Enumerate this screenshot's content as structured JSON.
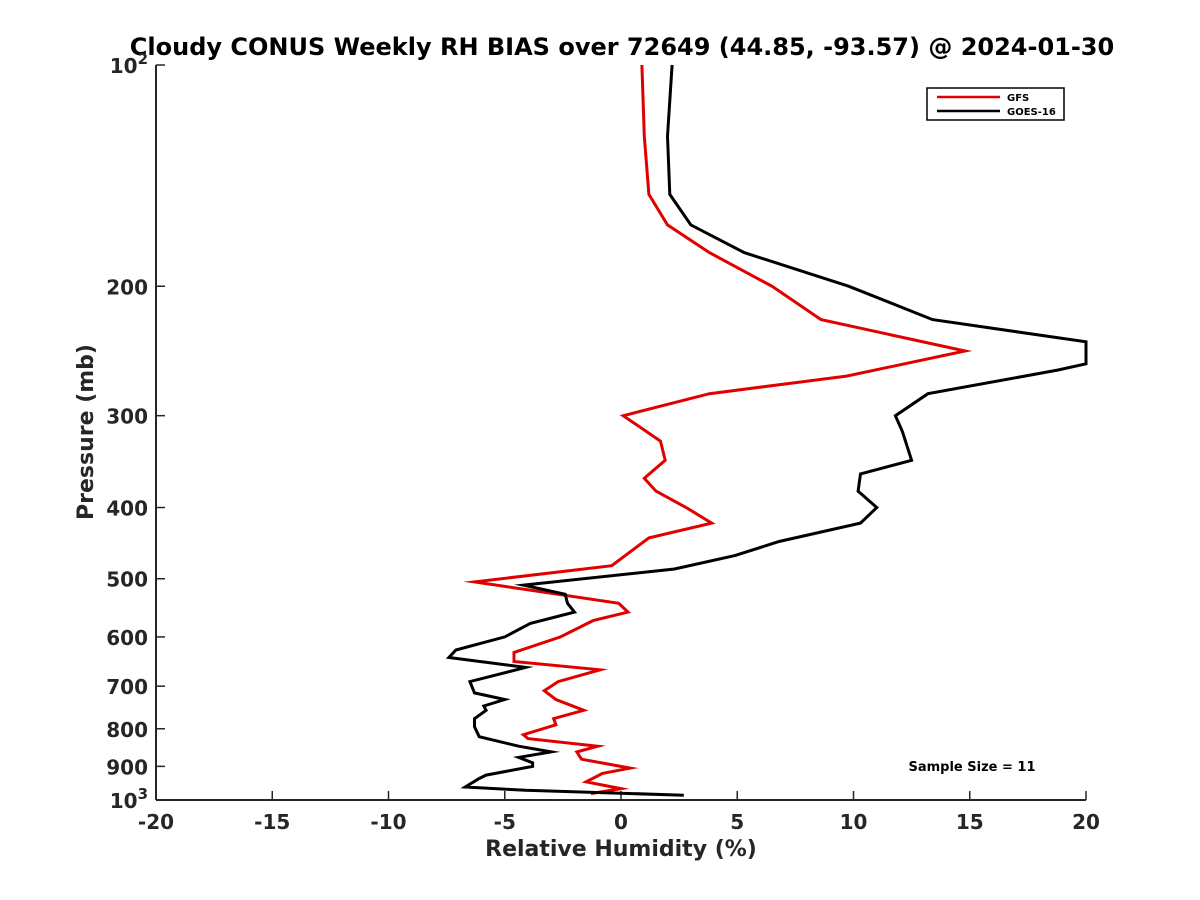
{
  "chart_data": {
    "type": "line",
    "title": "Cloudy CONUS Weekly RH BIAS over 72649 (44.85, -93.57) @ 2024-01-30",
    "xlabel": "Relative Humidity (%)",
    "ylabel": "Pressure (mb)",
    "xlim": [
      -20,
      20
    ],
    "ylim": [
      1000,
      100
    ],
    "y_scale": "log",
    "x_ticks": [
      -20,
      -15,
      -10,
      -5,
      0,
      5,
      10,
      15,
      20
    ],
    "x_tick_labels": [
      "-20",
      "-15",
      "-10",
      "-5",
      "0",
      "5",
      "10",
      "15",
      "20"
    ],
    "y_ticks": [
      100,
      200,
      300,
      400,
      500,
      600,
      700,
      800,
      900,
      1000
    ],
    "y_tick_labels": [
      {
        "base": "10",
        "sup": "2"
      },
      {
        "base": "200",
        "sup": ""
      },
      {
        "base": "300",
        "sup": ""
      },
      {
        "base": "400",
        "sup": ""
      },
      {
        "base": "500",
        "sup": ""
      },
      {
        "base": "600",
        "sup": ""
      },
      {
        "base": "700",
        "sup": ""
      },
      {
        "base": "800",
        "sup": ""
      },
      {
        "base": "900",
        "sup": ""
      },
      {
        "base": "10",
        "sup": "3"
      }
    ],
    "grid": false,
    "legend_position": "top-right",
    "annotation": "Sample Size = 11",
    "series": [
      {
        "name": "GFS",
        "color": "#e00000",
        "points": [
          [
            0.9,
            100
          ],
          [
            1.0,
            125
          ],
          [
            1.2,
            150
          ],
          [
            2.0,
            165
          ],
          [
            3.8,
            180
          ],
          [
            6.5,
            200
          ],
          [
            8.6,
            222
          ],
          [
            14.8,
            245
          ],
          [
            9.7,
            265
          ],
          [
            3.8,
            280
          ],
          [
            0.1,
            300
          ],
          [
            1.7,
            325
          ],
          [
            1.9,
            345
          ],
          [
            1.0,
            365
          ],
          [
            1.5,
            380
          ],
          [
            2.8,
            400
          ],
          [
            3.9,
            420
          ],
          [
            1.2,
            440
          ],
          [
            -0.4,
            480
          ],
          [
            -6.3,
            505
          ],
          [
            -0.1,
            540
          ],
          [
            0.3,
            555
          ],
          [
            -1.2,
            570
          ],
          [
            -2.6,
            600
          ],
          [
            -4.6,
            630
          ],
          [
            -4.6,
            648
          ],
          [
            -0.9,
            665
          ],
          [
            -2.7,
            690
          ],
          [
            -3.3,
            710
          ],
          [
            -2.8,
            730
          ],
          [
            -1.6,
            755
          ],
          [
            -2.9,
            775
          ],
          [
            -2.8,
            790
          ],
          [
            -4.2,
            815
          ],
          [
            -4.0,
            825
          ],
          [
            -1.0,
            845
          ],
          [
            -1.9,
            860
          ],
          [
            -1.7,
            880
          ],
          [
            0.4,
            905
          ],
          [
            -0.8,
            920
          ],
          [
            -1.5,
            945
          ],
          [
            0.0,
            965
          ],
          [
            -1.3,
            980
          ]
        ]
      },
      {
        "name": "GOES-16",
        "color": "#000000",
        "points": [
          [
            2.2,
            100
          ],
          [
            2.0,
            125
          ],
          [
            2.1,
            150
          ],
          [
            3.0,
            165
          ],
          [
            5.3,
            180
          ],
          [
            9.8,
            200
          ],
          [
            13.4,
            222
          ],
          [
            20.0,
            238
          ],
          [
            20.0,
            255
          ],
          [
            18.8,
            260
          ],
          [
            13.2,
            280
          ],
          [
            11.8,
            300
          ],
          [
            12.1,
            315
          ],
          [
            12.5,
            345
          ],
          [
            10.3,
            360
          ],
          [
            10.2,
            380
          ],
          [
            11.0,
            400
          ],
          [
            10.3,
            420
          ],
          [
            6.8,
            445
          ],
          [
            4.9,
            465
          ],
          [
            2.3,
            485
          ],
          [
            -4.2,
            510
          ],
          [
            -2.4,
            525
          ],
          [
            -2.3,
            540
          ],
          [
            -2.0,
            555
          ],
          [
            -3.9,
            575
          ],
          [
            -5.0,
            600
          ],
          [
            -7.1,
            625
          ],
          [
            -7.4,
            640
          ],
          [
            -4.1,
            660
          ],
          [
            -6.5,
            690
          ],
          [
            -6.3,
            715
          ],
          [
            -5.0,
            730
          ],
          [
            -5.9,
            745
          ],
          [
            -5.8,
            755
          ],
          [
            -6.3,
            775
          ],
          [
            -6.3,
            795
          ],
          [
            -6.1,
            820
          ],
          [
            -4.4,
            845
          ],
          [
            -3.0,
            860
          ],
          [
            -4.4,
            875
          ],
          [
            -3.8,
            890
          ],
          [
            -3.8,
            900
          ],
          [
            -5.8,
            925
          ],
          [
            -6.1,
            935
          ],
          [
            -6.7,
            960
          ],
          [
            -4.1,
            970
          ],
          [
            2.7,
            985
          ]
        ]
      }
    ]
  }
}
